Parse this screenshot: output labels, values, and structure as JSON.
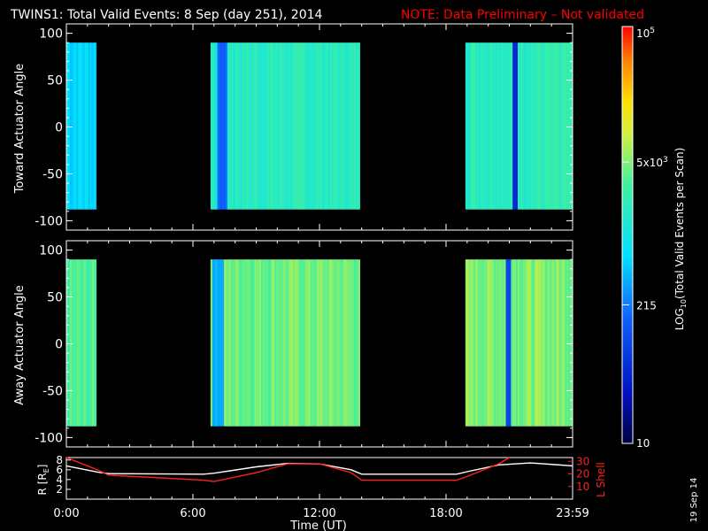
{
  "header": {
    "title": "TWINS1: Total Valid Events:  8 Sep (day 251), 2014",
    "note": "NOTE: Data Preliminary – Not validated"
  },
  "side_date": "19 Sep 14",
  "colors": {
    "background": "#000000",
    "axis": "#ffffff",
    "note": "#ff0000",
    "l_shell": "#ff2020",
    "radius": "#ffffff"
  },
  "chart_data": [
    {
      "type": "heatmap",
      "panel": "toward",
      "ylabel": "Toward Actuator Angle",
      "ylim": [
        -110,
        110
      ],
      "yticks": [
        100,
        50,
        0,
        -50,
        -100
      ],
      "x_range_hours": [
        0,
        24
      ],
      "data_extent": [
        -88,
        90
      ],
      "segments": [
        {
          "start": "0:00",
          "end": "1:25",
          "base_log": 2.8
        },
        {
          "start": "6:50",
          "end": "13:55",
          "base_log": 3.25
        },
        {
          "start": "18:55",
          "end": "24:00",
          "base_log": 3.3
        }
      ],
      "dark_bands": [
        {
          "time": "7:20",
          "width_h": 0.5,
          "log": 2.2
        },
        {
          "time": "21:15",
          "width_h": 0.2,
          "log": 1.7
        }
      ]
    },
    {
      "type": "heatmap",
      "panel": "away",
      "ylabel": "Away Actuator Angle",
      "ylim": [
        -110,
        110
      ],
      "yticks": [
        100,
        50,
        0,
        -50,
        -100
      ],
      "x_range_hours": [
        0,
        24
      ],
      "data_extent": [
        -88,
        90
      ],
      "segments": [
        {
          "start": "0:00",
          "end": "1:25",
          "base_log": 3.5
        },
        {
          "start": "6:50",
          "end": "13:55",
          "base_log": 3.65
        },
        {
          "start": "18:55",
          "end": "24:00",
          "base_log": 3.7
        }
      ],
      "dark_bands": [
        {
          "time": "7:10",
          "width_h": 0.6,
          "log": 2.6
        },
        {
          "time": "20:55",
          "width_h": 0.2,
          "log": 2.0
        }
      ]
    },
    {
      "type": "line",
      "panel": "orbit",
      "ylabel_left": "R [R",
      "ylabel_left_sub": "E",
      "ylabel_left_end": "]",
      "ylabel_right": "L Shell",
      "xlabel": "Time (UT)",
      "xticks": [
        "0:00",
        "6:00",
        "12:00",
        "18:00",
        "23:59"
      ],
      "yticks_left": [
        2,
        4,
        6,
        8
      ],
      "yticks_right": [
        10,
        20,
        30
      ],
      "ylim_left": [
        0,
        8.5
      ],
      "ylim_right": [
        0,
        33
      ],
      "series": [
        {
          "name": "R",
          "axis": "left",
          "x": [
            0,
            1.5,
            2,
            6.5,
            7,
            9,
            10.5,
            12,
            13.5,
            14,
            18.5,
            19,
            20.5,
            22,
            24
          ],
          "y": [
            6.8,
            5.5,
            5.2,
            5.1,
            5.3,
            6.6,
            7.3,
            7.2,
            6.0,
            5.1,
            5.1,
            5.6,
            7.0,
            7.4,
            6.8
          ]
        },
        {
          "name": "L Shell",
          "axis": "right",
          "x": [
            0,
            1.5,
            2,
            6.5,
            7,
            9,
            10.5,
            12,
            13.5,
            14,
            18.5,
            19,
            20.5,
            21
          ],
          "y": [
            33,
            23,
            19,
            15,
            14,
            21,
            28,
            28,
            21,
            15,
            15,
            18,
            28,
            33
          ]
        }
      ]
    }
  ],
  "colorbar": {
    "ylabel": "LOG",
    "ylabel_sub": "10",
    "ylabel_rest": "(Total Valid Events per Scan)",
    "log_range": [
      1,
      5
    ],
    "labels": [
      {
        "text": "10",
        "log": 1
      },
      {
        "text": "215",
        "log": 2.33
      },
      {
        "text": "5x10",
        "sup": "3",
        "log": 3.7
      },
      {
        "text": "10",
        "sup": "5",
        "log": 5
      }
    ]
  }
}
